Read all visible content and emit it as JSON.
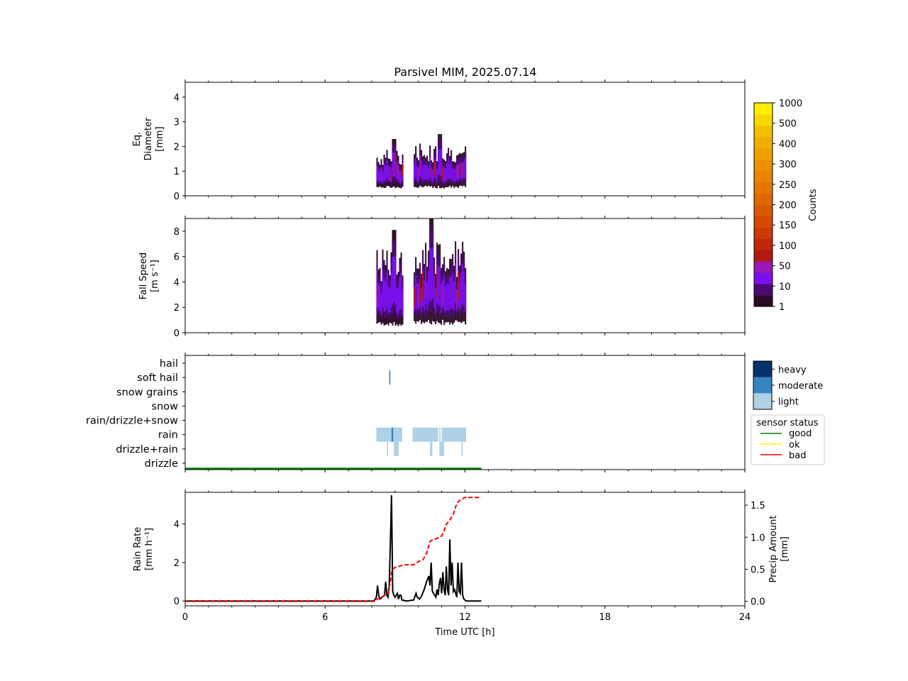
{
  "title": "Parsivel MIM, 2025.07.14",
  "colors": {
    "counts_scale": [
      "#2b0a26",
      "#4a0a70",
      "#7a10f0",
      "#9a18b8",
      "#b01a10",
      "#c02808",
      "#cc3a04",
      "#d44a02",
      "#da5a00",
      "#df6800",
      "#e47600",
      "#e88400",
      "#ec9200",
      "#eea000",
      "#f0ae00",
      "#f3c000",
      "#f8d800",
      "#ffee00"
    ],
    "category_scale": [
      "#aed1e6",
      "#3585c0",
      "#08306b"
    ],
    "rain_rate": "#000000",
    "precip_amount": "#ff0000",
    "status_good": "#008000",
    "status_ok": "#ffff00",
    "status_bad": "#ff0000"
  },
  "colorbar": {
    "label": "Counts",
    "ticks": [
      "1",
      "10",
      "50",
      "100",
      "150",
      "200",
      "250",
      "300",
      "400",
      "500",
      "1000"
    ]
  },
  "category_legend": {
    "items": [
      "light",
      "moderate",
      "heavy"
    ]
  },
  "status_legend": {
    "title": "sensor status",
    "items": [
      "good",
      "ok",
      "bad"
    ]
  },
  "chart_data": [
    {
      "type": "heatmap",
      "name": "diameter",
      "ylabel": [
        "Eq.",
        "Diameter",
        "[mm]"
      ],
      "xlim": [
        0,
        24
      ],
      "ylim": [
        0,
        4.6
      ],
      "yticks": [
        "0",
        "1",
        "2",
        "3",
        "4"
      ],
      "blocks": [
        {
          "x": [
            8.2,
            9.3
          ],
          "y_min": 0.3,
          "y_max": 2.3,
          "peak_x": 8.9,
          "peak_y": 2.3
        },
        {
          "x": [
            9.8,
            12.0
          ],
          "y_min": 0.3,
          "y_max": 2.6,
          "peak_x": 10.9,
          "peak_y": 2.5
        }
      ]
    },
    {
      "type": "heatmap",
      "name": "fall_speed",
      "ylabel": [
        "Fall Speed",
        "[m s⁻¹]"
      ],
      "xlim": [
        0,
        24
      ],
      "ylim": [
        0,
        9.0
      ],
      "yticks": [
        "0",
        "2",
        "4",
        "6",
        "8"
      ],
      "blocks": [
        {
          "x": [
            8.2,
            9.3
          ],
          "y_min": 0.5,
          "y_max": 8.1,
          "peak_x": 8.9,
          "peak_y": 8.1
        },
        {
          "x": [
            9.8,
            12.0
          ],
          "y_min": 0.6,
          "y_max": 9.0,
          "peak_x": 10.5,
          "peak_y": 9.0
        }
      ]
    },
    {
      "type": "heatmap",
      "name": "precip_type",
      "ylabel": [],
      "xlim": [
        0,
        24
      ],
      "categories": [
        "hail",
        "soft hail",
        "snow grains",
        "snow",
        "rain/drizzle+snow",
        "rain",
        "drizzle+rain",
        "drizzle"
      ],
      "cells": [
        {
          "category": "soft hail",
          "x": [
            8.75,
            8.8
          ],
          "intensity": "moderate"
        },
        {
          "category": "rain",
          "x": [
            8.2,
            9.3
          ],
          "intensity": "light"
        },
        {
          "category": "rain",
          "x": [
            8.85,
            8.92
          ],
          "intensity": "moderate"
        },
        {
          "category": "rain",
          "x": [
            9.75,
            12.05
          ],
          "intensity": "light"
        },
        {
          "category": "drizzle+rain",
          "x": [
            8.65,
            8.7
          ],
          "intensity": "light"
        },
        {
          "category": "drizzle+rain",
          "x": [
            8.95,
            9.15
          ],
          "intensity": "light"
        },
        {
          "category": "drizzle+rain",
          "x": [
            10.5,
            10.6
          ],
          "intensity": "light"
        },
        {
          "category": "drizzle+rain",
          "x": [
            10.9,
            11.1
          ],
          "intensity": "light"
        },
        {
          "category": "drizzle+rain",
          "x": [
            11.85,
            11.9
          ],
          "intensity": "light"
        }
      ],
      "status_line": {
        "x": [
          0,
          12.7
        ],
        "status": "good"
      }
    },
    {
      "type": "line",
      "name": "rain",
      "xlabel": "Time UTC [h]",
      "ylabel": [
        "Rain Rate",
        "[mm h⁻¹]"
      ],
      "y2label": [
        "Precip Amount",
        "[mm]"
      ],
      "xlim": [
        0,
        24
      ],
      "ylim": [
        -0.25,
        5.65
      ],
      "y2lim": [
        -0.07,
        1.7
      ],
      "xticks": [
        "0",
        "6",
        "12",
        "18",
        "24"
      ],
      "yticks": [
        "0",
        "2",
        "4"
      ],
      "y2ticks": [
        "0.0",
        "0.5",
        "1.0",
        "1.5"
      ],
      "series": [
        {
          "axis": "left",
          "style": "solid",
          "x": [
            0,
            8.1,
            8.2,
            8.25,
            8.3,
            8.35,
            8.45,
            8.55,
            8.6,
            8.65,
            8.7,
            8.75,
            8.8,
            8.85,
            8.9,
            8.95,
            9.0,
            9.1,
            9.15,
            9.2,
            9.25,
            9.3,
            9.5,
            9.8,
            9.9,
            9.95,
            10.05,
            10.15,
            10.25,
            10.35,
            10.45,
            10.5,
            10.55,
            10.6,
            10.7,
            10.75,
            10.8,
            10.85,
            10.9,
            10.95,
            11.0,
            11.05,
            11.1,
            11.15,
            11.2,
            11.25,
            11.3,
            11.35,
            11.4,
            11.45,
            11.5,
            11.55,
            11.6,
            11.65,
            11.7,
            11.75,
            11.8,
            11.85,
            11.9,
            11.95,
            12.0,
            12.05,
            12.1,
            12.7
          ],
          "y": [
            0,
            0,
            0.2,
            0.8,
            0.3,
            0.1,
            0.2,
            0.3,
            1.0,
            0.3,
            0.2,
            0.8,
            3.0,
            5.5,
            0.5,
            0.3,
            0.2,
            0.4,
            0.1,
            0.3,
            0.3,
            0.05,
            0,
            0.05,
            0.4,
            0.2,
            0.1,
            0.3,
            0.6,
            1.0,
            1.3,
            0.8,
            2.0,
            0.5,
            0.3,
            0.2,
            0.6,
            0.3,
            0.9,
            1.2,
            0.4,
            1.5,
            0.6,
            0.3,
            1.8,
            0.6,
            0.3,
            3.2,
            0.8,
            2.0,
            0.5,
            0.6,
            0.4,
            0.2,
            2.0,
            0.5,
            0.4,
            2.0,
            0.3,
            0.1,
            0.05,
            0,
            0,
            0
          ]
        },
        {
          "axis": "right",
          "style": "dashed",
          "x": [
            0,
            8.1,
            8.3,
            8.5,
            8.7,
            8.8,
            8.85,
            8.9,
            9.0,
            9.2,
            9.4,
            9.8,
            10.0,
            10.2,
            10.35,
            10.5,
            10.6,
            10.8,
            11.0,
            11.1,
            11.2,
            11.35,
            11.5,
            11.6,
            11.7,
            11.8,
            12.0,
            12.1,
            12.7
          ],
          "y": [
            0,
            0,
            0.05,
            0.08,
            0.12,
            0.3,
            0.45,
            0.5,
            0.53,
            0.55,
            0.57,
            0.57,
            0.62,
            0.65,
            0.75,
            0.93,
            0.96,
            0.98,
            1.02,
            1.1,
            1.2,
            1.27,
            1.36,
            1.48,
            1.55,
            1.58,
            1.62,
            1.62,
            1.62
          ]
        }
      ]
    }
  ]
}
